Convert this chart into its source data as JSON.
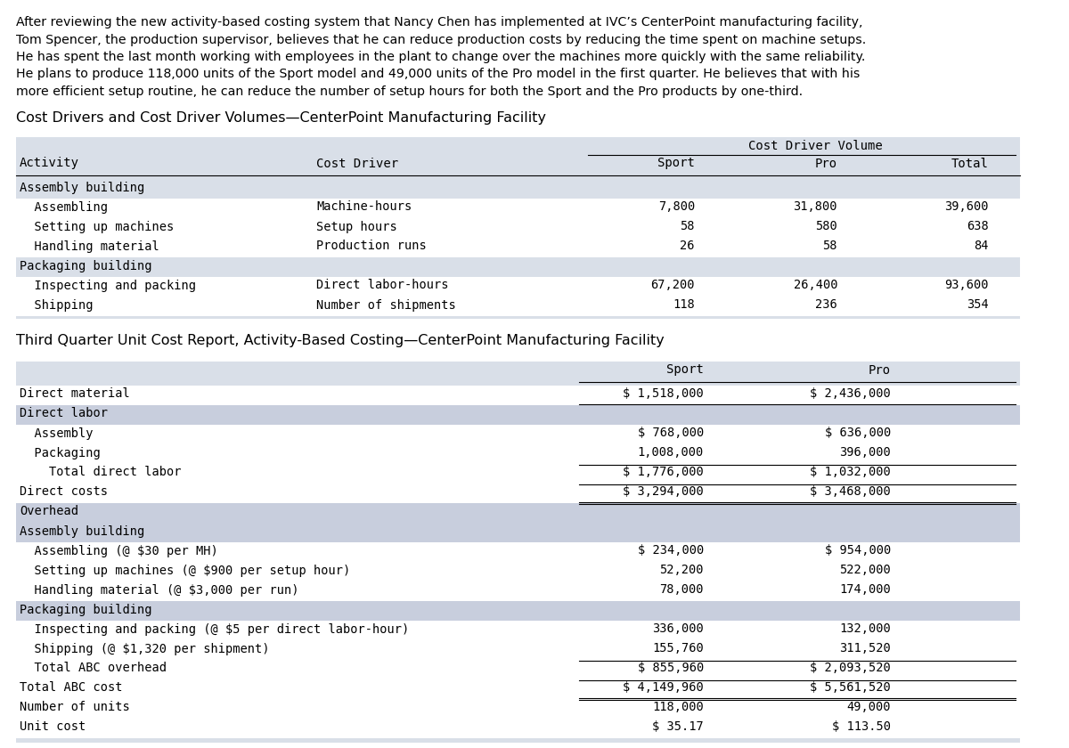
{
  "intro_text": "After reviewing the new activity-based costing system that Nancy Chen has implemented at IVC’s CenterPoint manufacturing facility,\nTom Spencer, the production supervisor, believes that he can reduce production costs by reducing the time spent on machine setups.\nHe has spent the last month working with employees in the plant to change over the machines more quickly with the same reliability.\nHe plans to produce 118,000 units of the Sport model and 49,000 units of the Pro model in the first quarter. He believes that with his\nmore efficient setup routine, he can reduce the number of setup hours for both the Sport and the Pro products by one-third.",
  "table1_title": "Cost Drivers and Cost Driver Volumes—CenterPoint Manufacturing Facility",
  "table1_col_header_group": "Cost Driver Volume",
  "table1_rows": [
    [
      "Assembly building",
      "",
      "",
      "",
      ""
    ],
    [
      "  Assembling",
      "Machine-hours",
      "7,800",
      "31,800",
      "39,600"
    ],
    [
      "  Setting up machines",
      "Setup hours",
      "58",
      "580",
      "638"
    ],
    [
      "  Handling material",
      "Production runs",
      "26",
      "58",
      "84"
    ],
    [
      "Packaging building",
      "",
      "",
      "",
      ""
    ],
    [
      "  Inspecting and packing",
      "Direct labor-hours",
      "67,200",
      "26,400",
      "93,600"
    ],
    [
      "  Shipping",
      "Number of shipments",
      "118",
      "236",
      "354"
    ]
  ],
  "table2_title": "Third Quarter Unit Cost Report, Activity-Based Costing—CenterPoint Manufacturing Facility",
  "table2_rows": [
    {
      "label": "Direct material",
      "sport": "$ 1,518,000",
      "pro": "$ 2,436,000",
      "shaded": false,
      "border_top": false,
      "border_bottom": true,
      "double_bottom": false
    },
    {
      "label": "Direct labor",
      "sport": "",
      "pro": "",
      "shaded": true,
      "border_top": false,
      "border_bottom": false,
      "double_bottom": false
    },
    {
      "label": "  Assembly",
      "sport": "$ 768,000",
      "pro": "$ 636,000",
      "shaded": false,
      "border_top": false,
      "border_bottom": false,
      "double_bottom": false
    },
    {
      "label": "  Packaging",
      "sport": "1,008,000",
      "pro": "396,000",
      "shaded": false,
      "border_top": false,
      "border_bottom": false,
      "double_bottom": false
    },
    {
      "label": "    Total direct labor",
      "sport": "$ 1,776,000",
      "pro": "$ 1,032,000",
      "shaded": false,
      "border_top": true,
      "border_bottom": false,
      "double_bottom": false
    },
    {
      "label": "Direct costs",
      "sport": "$ 3,294,000",
      "pro": "$ 3,468,000",
      "shaded": false,
      "border_top": true,
      "border_bottom": true,
      "double_bottom": true
    },
    {
      "label": "Overhead",
      "sport": "",
      "pro": "",
      "shaded": true,
      "border_top": false,
      "border_bottom": false,
      "double_bottom": false
    },
    {
      "label": "Assembly building",
      "sport": "",
      "pro": "",
      "shaded": true,
      "border_top": false,
      "border_bottom": false,
      "double_bottom": false
    },
    {
      "label": "  Assembling (@ $30 per MH)",
      "sport": "$ 234,000",
      "pro": "$ 954,000",
      "shaded": false,
      "border_top": false,
      "border_bottom": false,
      "double_bottom": false
    },
    {
      "label": "  Setting up machines (@ $900 per setup hour)",
      "sport": "52,200",
      "pro": "522,000",
      "shaded": false,
      "border_top": false,
      "border_bottom": false,
      "double_bottom": false
    },
    {
      "label": "  Handling material (@ $3,000 per run)",
      "sport": "78,000",
      "pro": "174,000",
      "shaded": false,
      "border_top": false,
      "border_bottom": false,
      "double_bottom": false
    },
    {
      "label": "Packaging building",
      "sport": "",
      "pro": "",
      "shaded": true,
      "border_top": false,
      "border_bottom": false,
      "double_bottom": false
    },
    {
      "label": "  Inspecting and packing (@ $5 per direct labor-hour)",
      "sport": "336,000",
      "pro": "132,000",
      "shaded": false,
      "border_top": false,
      "border_bottom": false,
      "double_bottom": false
    },
    {
      "label": "  Shipping (@ $1,320 per shipment)",
      "sport": "155,760",
      "pro": "311,520",
      "shaded": false,
      "border_top": false,
      "border_bottom": false,
      "double_bottom": false
    },
    {
      "label": "  Total ABC overhead",
      "sport": "$ 855,960",
      "pro": "$ 2,093,520",
      "shaded": false,
      "border_top": true,
      "border_bottom": false,
      "double_bottom": false
    },
    {
      "label": "Total ABC cost",
      "sport": "$ 4,149,960",
      "pro": "$ 5,561,520",
      "shaded": false,
      "border_top": true,
      "border_bottom": true,
      "double_bottom": true
    },
    {
      "label": "Number of units",
      "sport": "118,000",
      "pro": "49,000",
      "shaded": false,
      "border_top": false,
      "border_bottom": false,
      "double_bottom": false
    },
    {
      "label": "Unit cost",
      "sport": "$ 35.17",
      "pro": "$ 113.50",
      "shaded": false,
      "border_top": false,
      "border_bottom": false,
      "double_bottom": false
    }
  ],
  "bg_color": "#ffffff",
  "table1_bg": "#d9dfe8",
  "table2_bg": "#d9dfe8",
  "shade_color": "#c8cedd",
  "intro_fontsize": 10.2,
  "title_fontsize": 11.5,
  "header_fontsize": 10.0,
  "body_fontsize": 9.8,
  "mono_font": "DejaVu Sans Mono",
  "sans_font": "DejaVu Sans"
}
